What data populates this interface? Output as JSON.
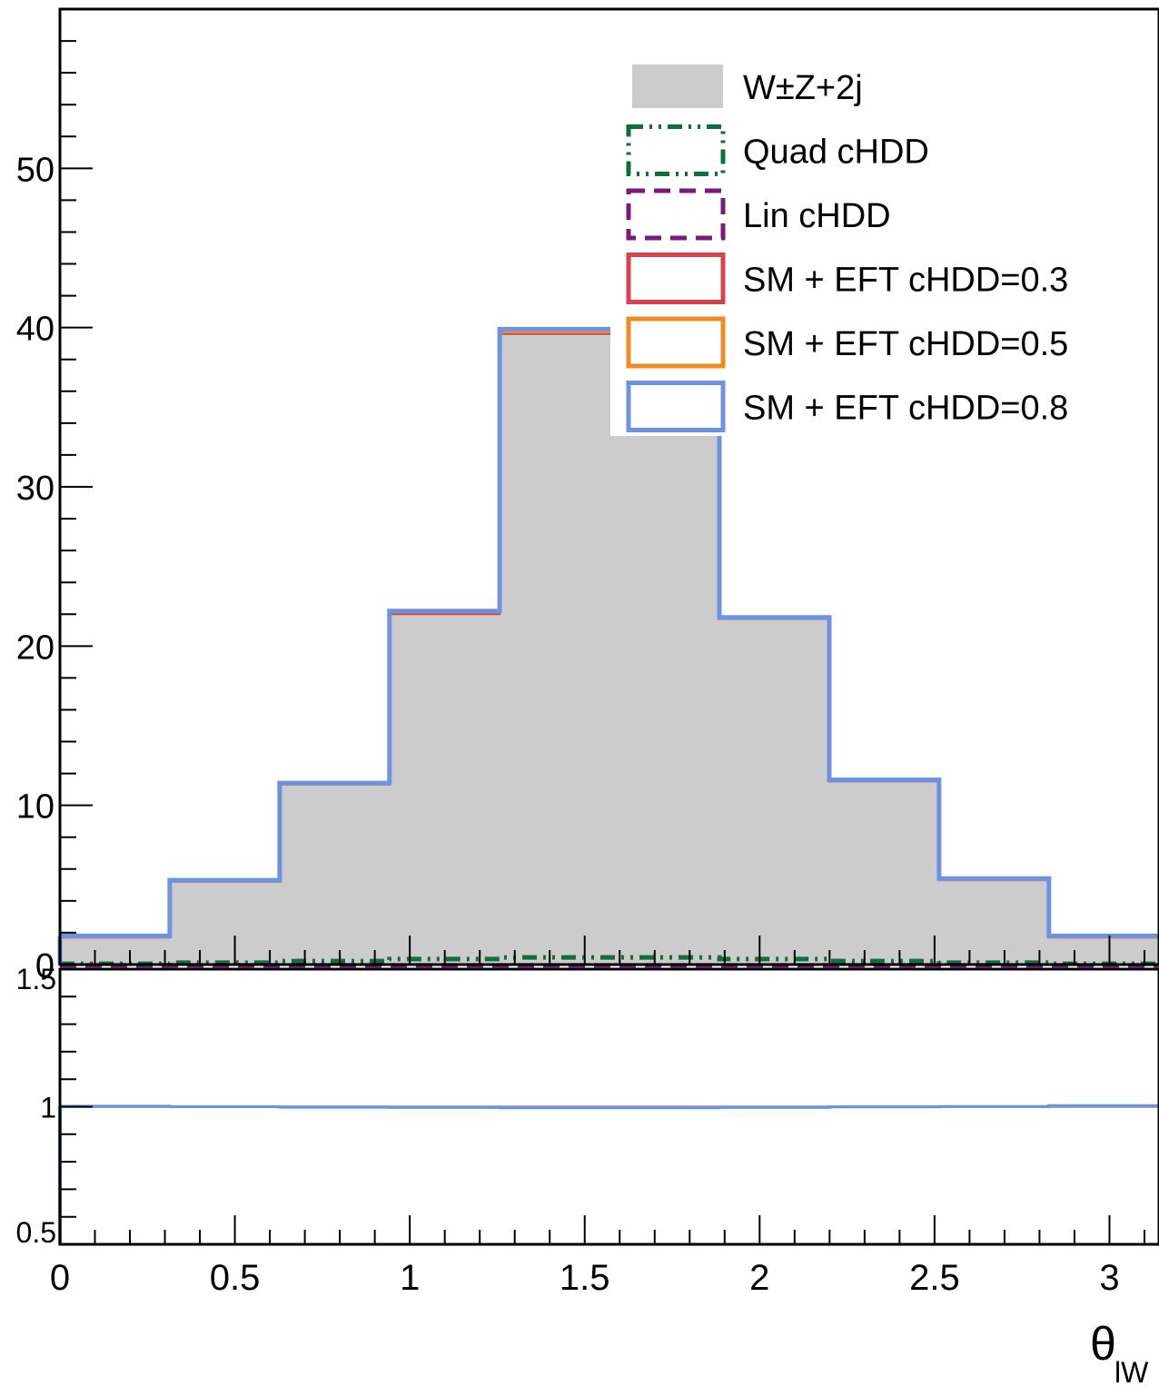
{
  "chart_data": {
    "type": "histogram",
    "xlabel": {
      "main": "θ",
      "sub": "lW"
    },
    "x_ticks": [
      "0",
      "0.5",
      "1",
      "1.5",
      "2",
      "2.5",
      "3"
    ],
    "main_panel": {
      "ylim": [
        0,
        60
      ],
      "y_ticks": [
        "0",
        "10",
        "20",
        "30",
        "40",
        "50"
      ],
      "bin_edges": [
        0,
        0.314,
        0.628,
        0.942,
        1.257,
        1.571,
        1.885,
        2.199,
        2.513,
        2.827,
        3.142
      ],
      "series": [
        {
          "name": "W±Z+2j",
          "style": "fill",
          "color": "#cccccc",
          "values": [
            1.7,
            5.2,
            11.3,
            22.0,
            39.6,
            39.6,
            21.7,
            11.5,
            5.3,
            1.7
          ]
        },
        {
          "name": "Quad cHDD",
          "style": "dashdot",
          "color": "#0f6e3c",
          "values": [
            0.05,
            0.12,
            0.22,
            0.35,
            0.45,
            0.45,
            0.35,
            0.22,
            0.12,
            0.05
          ]
        },
        {
          "name": "Lin cHDD",
          "style": "dashed",
          "color": "#7a1a7e",
          "values": [
            -0.05,
            -0.05,
            -0.05,
            -0.05,
            -0.05,
            -0.05,
            -0.05,
            -0.05,
            -0.05,
            -0.05
          ]
        },
        {
          "name": "SM + EFT cHDD=0.3",
          "style": "line",
          "color": "#d9414f",
          "values": [
            1.7,
            5.2,
            11.3,
            22.0,
            39.6,
            39.6,
            21.7,
            11.5,
            5.3,
            1.7
          ]
        },
        {
          "name": "SM + EFT cHDD=0.5",
          "style": "line",
          "color": "#f08a24",
          "values": [
            1.7,
            5.2,
            11.3,
            22.1,
            39.7,
            39.7,
            21.8,
            11.6,
            5.3,
            1.7
          ]
        },
        {
          "name": "SM + EFT cHDD=0.8",
          "style": "line",
          "color": "#6b93e0",
          "values": [
            1.8,
            5.3,
            11.4,
            22.2,
            39.9,
            39.9,
            21.8,
            11.6,
            5.4,
            1.8
          ]
        }
      ],
      "legend_position": "top-right"
    },
    "ratio_panel": {
      "ylim": [
        0.5,
        1.5
      ],
      "y_ticks": [
        "0.5",
        "1",
        "1.5"
      ],
      "series": [
        {
          "name": "SM + EFT cHDD=0.8",
          "color": "#6b93e0",
          "values": [
            1.002,
            1.0,
            0.998,
            0.997,
            0.996,
            0.996,
            0.997,
            0.999,
            1.001,
            1.004
          ]
        },
        {
          "name": "SM + EFT cHDD=0.3",
          "color": "#aaaaaa",
          "values": [
            1.0,
            1.0,
            1.0,
            1.0,
            1.0,
            1.0,
            1.0,
            1.0,
            1.0,
            1.0
          ]
        }
      ]
    }
  }
}
